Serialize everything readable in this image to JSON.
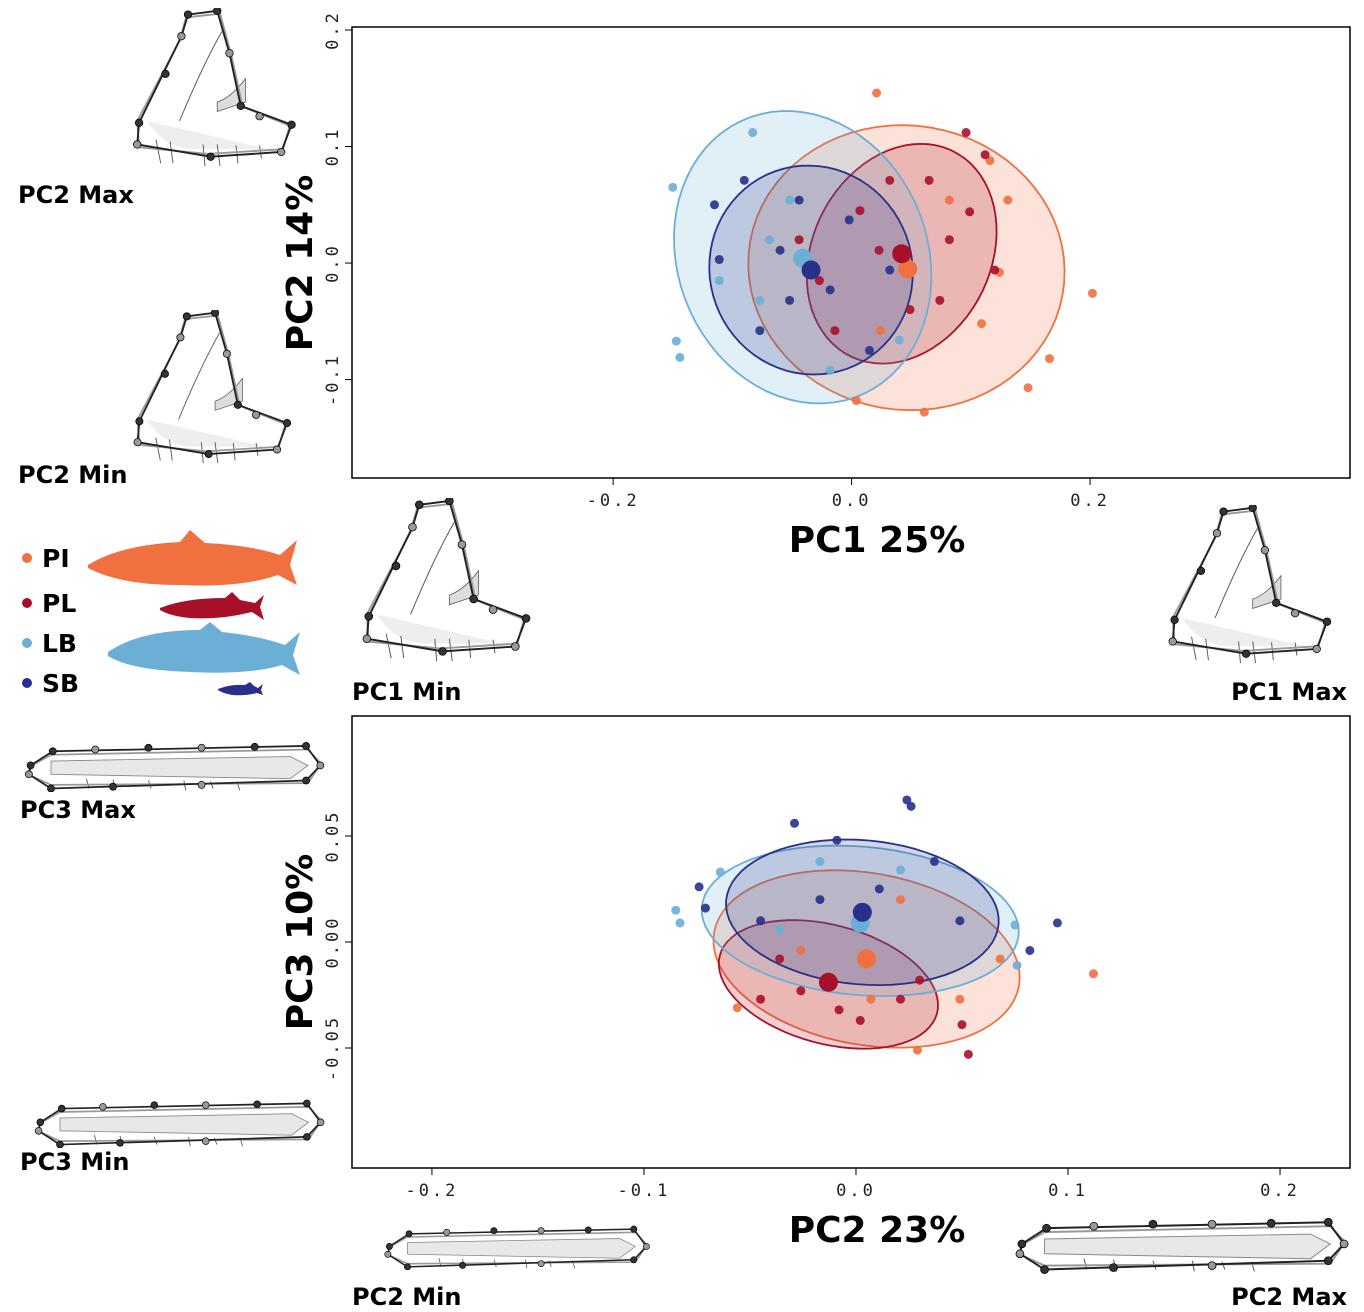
{
  "chart_data": [
    {
      "type": "scatter",
      "xlabel": "PC1 25%",
      "ylabel": "PC2 14%",
      "xlim": [
        -0.419,
        0.418
      ],
      "ylim": [
        -0.1845,
        0.2026
      ],
      "xticks": [
        -0.2,
        {
          "value": 0,
          "label": "0.0"
        },
        0.2
      ],
      "yticks": [
        -0.1,
        {
          "value": 0,
          "label": "0.0"
        },
        0.1,
        0.2
      ],
      "annotations": [
        "PC2 Max",
        "PC2 Min",
        "PC1 Min",
        "PC1 Max"
      ],
      "series": [
        {
          "name": "PI",
          "color": "#f07040",
          "x": [
            0.021,
            0.202,
            0.166,
            0.148,
            0.061,
            0.109,
            0.131,
            0.116,
            0.124,
            0.004,
            0.024,
            0.082
          ],
          "values": [
            0.146,
            -0.026,
            -0.082,
            -0.107,
            -0.128,
            -0.052,
            0.054,
            0.088,
            -0.008,
            -0.118,
            -0.058,
            0.054
          ],
          "centroid": [
            0.047,
            -0.005
          ],
          "ellipse": {
            "center": [
              0.046,
              -0.004
            ],
            "radii": [
              0.133,
              0.122
            ],
            "angle": -10
          }
        },
        {
          "name": "PL",
          "color": "#a8102a",
          "x": [
            0.096,
            0.112,
            0.099,
            0.12,
            0.049,
            0.007,
            -0.014,
            0.023,
            0.065,
            -0.027,
            0.074,
            0.032,
            -0.044,
            0.082
          ],
          "values": [
            0.112,
            0.093,
            0.044,
            -0.006,
            -0.04,
            0.045,
            -0.058,
            0.011,
            0.071,
            -0.015,
            -0.032,
            0.071,
            0.02,
            0.02
          ],
          "centroid": [
            0.042,
            0.008
          ],
          "ellipse": {
            "center": [
              0.042,
              0.008
            ],
            "radii": [
              0.098,
              0.075
            ],
            "angle": 65
          }
        },
        {
          "name": "LB",
          "color": "#6baed6",
          "x": [
            -0.083,
            -0.15,
            -0.147,
            -0.144,
            -0.111,
            -0.069,
            -0.077,
            -0.018,
            -0.052,
            0.04
          ],
          "values": [
            0.112,
            0.065,
            -0.067,
            -0.081,
            -0.015,
            0.02,
            -0.032,
            -0.092,
            0.054,
            -0.066
          ],
          "centroid": [
            -0.041,
            0.004
          ],
          "ellipse": {
            "center": [
              -0.041,
              0.005
            ],
            "radii": [
              0.128,
              0.105
            ],
            "angle": 110
          }
        },
        {
          "name": "SB",
          "color": "#27308a",
          "x": [
            -0.09,
            -0.115,
            -0.111,
            -0.077,
            -0.044,
            -0.002,
            -0.052,
            -0.018,
            0.015,
            -0.06,
            0.032
          ],
          "values": [
            0.071,
            0.05,
            0.003,
            -0.058,
            0.054,
            0.037,
            -0.032,
            -0.023,
            -0.075,
            0.011,
            -0.006
          ],
          "centroid": [
            -0.034,
            -0.006
          ],
          "ellipse": {
            "center": [
              -0.034,
              -0.006
            ],
            "radii": [
              0.085,
              0.09
            ],
            "angle": 15
          }
        }
      ]
    },
    {
      "type": "scatter",
      "xlabel": "PC2 23%",
      "ylabel": "PC3 10%",
      "xlim": [
        -0.2377,
        0.233
      ],
      "ylim": [
        -0.1066,
        0.1066
      ],
      "xticks": [
        -0.2,
        -0.1,
        {
          "value": 0,
          "label": "0.0"
        },
        0.1,
        0.2
      ],
      "yticks": [
        -0.05,
        {
          "value": 0,
          "label": "0.00"
        },
        0.05
      ],
      "annotations": [
        "PC3 Max",
        "PC3 Min",
        "PC2 Min",
        "PC2 Max"
      ],
      "series": [
        {
          "name": "PI",
          "color": "#f07040",
          "x": [
            0.112,
            0.029,
            -0.056,
            0.068,
            0.049,
            0.021,
            -0.026,
            0.007
          ],
          "values": [
            -0.015,
            -0.051,
            -0.031,
            -0.008,
            -0.027,
            0.02,
            -0.004,
            -0.027
          ],
          "centroid": [
            0.005,
            -0.008
          ],
          "ellipse": {
            "center": [
              0.005,
              -0.008
            ],
            "radii": [
              0.073,
              0.0405
            ],
            "angle": -10
          }
        },
        {
          "name": "PL",
          "color": "#a8102a",
          "x": [
            0.053,
            0.05,
            -0.036,
            -0.008,
            0.021,
            -0.045,
            0.002,
            0.03,
            -0.026
          ],
          "values": [
            -0.053,
            -0.039,
            -0.008,
            -0.032,
            -0.027,
            -0.027,
            -0.037,
            -0.018,
            -0.023
          ],
          "centroid": [
            -0.013,
            -0.019
          ],
          "ellipse": {
            "center": [
              -0.013,
              -0.02
            ],
            "radii": [
              0.053,
              0.028
            ],
            "angle": -15
          }
        },
        {
          "name": "LB",
          "color": "#6baed6",
          "x": [
            -0.085,
            -0.083,
            -0.064,
            -0.017,
            0.075,
            0.076,
            0.021,
            -0.036
          ],
          "values": [
            0.015,
            0.009,
            0.033,
            0.038,
            0.008,
            -0.011,
            0.034,
            0.006
          ],
          "centroid": [
            0.002,
            0.009
          ],
          "ellipse": {
            "center": [
              0.002,
              0.01
            ],
            "radii": [
              0.075,
              0.035
            ],
            "angle": -5
          }
        },
        {
          "name": "SB",
          "color": "#27308a",
          "x": [
            0.024,
            0.026,
            -0.029,
            -0.009,
            -0.074,
            -0.071,
            0.095,
            0.082,
            0.037,
            0.011,
            0.049,
            -0.017,
            -0.045
          ],
          "values": [
            0.067,
            0.064,
            0.056,
            0.048,
            0.026,
            0.016,
            0.009,
            -0.004,
            0.038,
            0.025,
            0.01,
            0.02,
            0.01
          ],
          "centroid": [
            0.003,
            0.014
          ],
          "ellipse": {
            "center": [
              0.003,
              0.014
            ],
            "radii": [
              0.0645,
              0.034
            ],
            "angle": -5
          }
        }
      ]
    }
  ]
}
